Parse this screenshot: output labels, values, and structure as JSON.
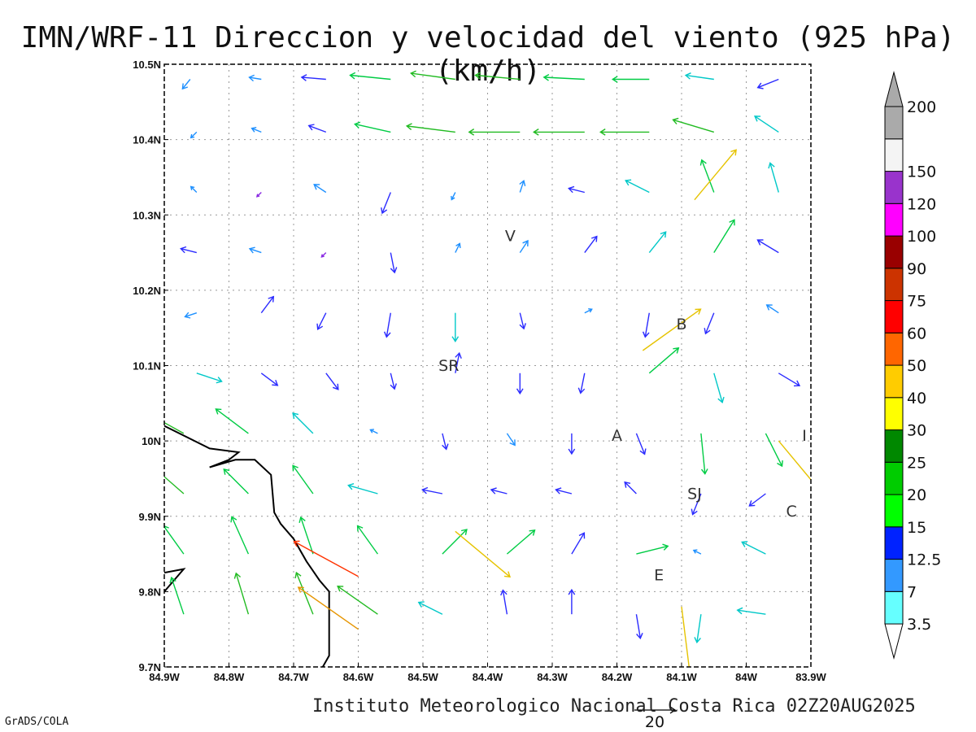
{
  "title": "IMN/WRF-11 Direccion y velocidad del viento (925 hPa)(km/h)",
  "credit": "Instituto Meteorologico Nacional Costa Rica 02Z20AUG2025",
  "software": "GrADS/COLA",
  "reference_vector": {
    "label": "20",
    "speed": 20
  },
  "map_extent": {
    "lon_min": -84.9,
    "lon_max": -83.9,
    "lat_min": 9.7,
    "lat_max": 10.5
  },
  "lon_ticks": [
    {
      "lon": -84.9,
      "label": "84.9W"
    },
    {
      "lon": -84.8,
      "label": "84.8W"
    },
    {
      "lon": -84.7,
      "label": "84.7W"
    },
    {
      "lon": -84.6,
      "label": "84.6W"
    },
    {
      "lon": -84.5,
      "label": "84.5W"
    },
    {
      "lon": -84.4,
      "label": "84.4W"
    },
    {
      "lon": -84.3,
      "label": "84.3W"
    },
    {
      "lon": -84.2,
      "label": "84.2W"
    },
    {
      "lon": -84.1,
      "label": "84.1W"
    },
    {
      "lon": -84.0,
      "label": "84W"
    },
    {
      "lon": -83.9,
      "label": "83.9W"
    }
  ],
  "lat_ticks": [
    {
      "lat": 9.7,
      "label": "9.7N"
    },
    {
      "lat": 9.8,
      "label": "9.8N"
    },
    {
      "lat": 9.9,
      "label": "9.9N"
    },
    {
      "lat": 10.0,
      "label": "10N"
    },
    {
      "lat": 10.1,
      "label": "10.1N"
    },
    {
      "lat": 10.2,
      "label": "10.2N"
    },
    {
      "lat": 10.3,
      "label": "10.3N"
    },
    {
      "lat": 10.4,
      "label": "10.4N"
    },
    {
      "lat": 10.5,
      "label": "10.5N"
    }
  ],
  "colorbar": {
    "bins": [
      {
        "label": "3.5",
        "color": "#66ffff"
      },
      {
        "label": "7",
        "color": "#3399ff"
      },
      {
        "label": "12.5",
        "color": "#0022ff"
      },
      {
        "label": "15",
        "color": "#00ff00"
      },
      {
        "label": "20",
        "color": "#00cc00"
      },
      {
        "label": "25",
        "color": "#008800"
      },
      {
        "label": "30",
        "color": "#ffff00"
      },
      {
        "label": "40",
        "color": "#ffcc00"
      },
      {
        "label": "50",
        "color": "#ff6600"
      },
      {
        "label": "60",
        "color": "#ff0000"
      },
      {
        "label": "75",
        "color": "#cc3300"
      },
      {
        "label": "90",
        "color": "#990000"
      },
      {
        "label": "100",
        "color": "#ff00ff"
      },
      {
        "label": "120",
        "color": "#9933cc"
      },
      {
        "label": "150",
        "color": "#f4f4f4"
      },
      {
        "label": "200",
        "color": "#aaaaaa"
      }
    ],
    "low_color": "#ffffff",
    "high_color": "#aaaaaa"
  },
  "speed_classes": [
    {
      "max": 3.5,
      "color": "#8a2be2"
    },
    {
      "max": 7,
      "color": "#1e90ff"
    },
    {
      "max": 12.5,
      "color": "#2b2bff"
    },
    {
      "max": 15,
      "color": "#00c8c8"
    },
    {
      "max": 20,
      "color": "#00cc44"
    },
    {
      "max": 25,
      "color": "#22bb22"
    },
    {
      "max": 30,
      "color": "#9acd32"
    },
    {
      "max": 40,
      "color": "#e6c300"
    },
    {
      "max": 50,
      "color": "#e69500"
    },
    {
      "max": 60,
      "color": "#ff3300"
    }
  ],
  "cities": [
    {
      "name": "V",
      "lon": -84.365,
      "lat": 10.265
    },
    {
      "name": "SR",
      "lon": -84.46,
      "lat": 10.093
    },
    {
      "name": "B",
      "lon": -84.1,
      "lat": 10.148
    },
    {
      "name": "A",
      "lon": -84.2,
      "lat": 10.0
    },
    {
      "name": "SJ",
      "lon": -84.08,
      "lat": 9.923
    },
    {
      "name": "C",
      "lon": -83.93,
      "lat": 9.9
    },
    {
      "name": "E",
      "lon": -84.135,
      "lat": 9.815
    },
    {
      "name": "I",
      "lon": -83.91,
      "lat": 10.0
    }
  ],
  "coastline": [
    [
      [
        -84.9,
        10.02
      ],
      [
        -84.83,
        9.99
      ],
      [
        -84.785,
        9.985
      ],
      [
        -84.8,
        9.975
      ],
      [
        -84.83,
        9.965
      ],
      [
        -84.79,
        9.975
      ],
      [
        -84.76,
        9.975
      ],
      [
        -84.735,
        9.955
      ],
      [
        -84.73,
        9.905
      ],
      [
        -84.72,
        9.89
      ],
      [
        -84.7,
        9.87
      ],
      [
        -84.68,
        9.84
      ],
      [
        -84.66,
        9.815
      ],
      [
        -84.645,
        9.8
      ],
      [
        -84.645,
        9.76
      ],
      [
        -84.645,
        9.715
      ],
      [
        -84.655,
        9.7
      ]
    ],
    [
      [
        -84.9,
        9.825
      ],
      [
        -84.87,
        9.83
      ],
      [
        -84.9,
        9.8
      ]
    ]
  ],
  "wind_field": [
    {
      "lat": 10.48,
      "lon": -84.86,
      "u": -4,
      "v": -5,
      "s": 6
    },
    {
      "lat": 10.48,
      "lon": -84.75,
      "u": -6,
      "v": 1,
      "s": 6
    },
    {
      "lat": 10.48,
      "lon": -84.65,
      "u": -12,
      "v": 1,
      "s": 12
    },
    {
      "lat": 10.48,
      "lon": -84.55,
      "u": -20,
      "v": 2,
      "s": 20
    },
    {
      "lat": 10.48,
      "lon": -84.45,
      "u": -22,
      "v": 3,
      "s": 22
    },
    {
      "lat": 10.48,
      "lon": -84.35,
      "u": -22,
      "v": 2,
      "s": 22
    },
    {
      "lat": 10.48,
      "lon": -84.25,
      "u": -20,
      "v": 1,
      "s": 20
    },
    {
      "lat": 10.48,
      "lon": -84.15,
      "u": -18,
      "v": 0,
      "s": 18
    },
    {
      "lat": 10.48,
      "lon": -84.05,
      "u": -14,
      "v": 2,
      "s": 14
    },
    {
      "lat": 10.48,
      "lon": -83.95,
      "u": -10,
      "v": -4,
      "s": 11
    },
    {
      "lat": 10.41,
      "lon": -84.85,
      "u": -3,
      "v": -3,
      "s": 4
    },
    {
      "lat": 10.41,
      "lon": -84.75,
      "u": -5,
      "v": 2,
      "s": 5
    },
    {
      "lat": 10.41,
      "lon": -84.65,
      "u": -8,
      "v": 3,
      "s": 9
    },
    {
      "lat": 10.41,
      "lon": -84.55,
      "u": -18,
      "v": 4,
      "s": 18
    },
    {
      "lat": 10.41,
      "lon": -84.45,
      "u": -24,
      "v": 3,
      "s": 24
    },
    {
      "lat": 10.41,
      "lon": -84.35,
      "u": -25,
      "v": 0,
      "s": 25
    },
    {
      "lat": 10.41,
      "lon": -84.25,
      "u": -25,
      "v": 0,
      "s": 25
    },
    {
      "lat": 10.41,
      "lon": -84.15,
      "u": -24,
      "v": 0,
      "s": 24
    },
    {
      "lat": 10.41,
      "lon": -84.05,
      "u": -20,
      "v": 6,
      "s": 21
    },
    {
      "lat": 10.41,
      "lon": -83.95,
      "u": -12,
      "v": 8,
      "s": 14
    },
    {
      "lat": 10.33,
      "lon": -84.85,
      "u": -3,
      "v": 3,
      "s": 4
    },
    {
      "lat": 10.33,
      "lon": -84.75,
      "u": -2,
      "v": -2,
      "s": 3
    },
    {
      "lat": 10.33,
      "lon": -84.65,
      "u": -6,
      "v": 4,
      "s": 7
    },
    {
      "lat": 10.33,
      "lon": -84.55,
      "u": -4,
      "v": -10,
      "s": 11
    },
    {
      "lat": 10.33,
      "lon": -84.45,
      "u": -2,
      "v": -4,
      "s": 4
    },
    {
      "lat": 10.33,
      "lon": -84.35,
      "u": 2,
      "v": 6,
      "s": 6
    },
    {
      "lat": 10.33,
      "lon": -84.25,
      "u": -8,
      "v": 2,
      "s": 8
    },
    {
      "lat": 10.33,
      "lon": -84.15,
      "u": -12,
      "v": 6,
      "s": 13
    },
    {
      "lat": 10.33,
      "lon": -84.05,
      "u": -6,
      "v": 16,
      "s": 17
    },
    {
      "lat": 10.33,
      "lon": -83.95,
      "u": -4,
      "v": 14,
      "s": 15
    },
    {
      "lat": 10.25,
      "lon": -84.85,
      "u": -8,
      "v": 2,
      "s": 8
    },
    {
      "lat": 10.25,
      "lon": -84.75,
      "u": -6,
      "v": 2,
      "s": 6
    },
    {
      "lat": 10.25,
      "lon": -84.65,
      "u": -2,
      "v": -2,
      "s": 3
    },
    {
      "lat": 10.25,
      "lon": -84.55,
      "u": 2,
      "v": -10,
      "s": 10
    },
    {
      "lat": 10.25,
      "lon": -84.45,
      "u": 2,
      "v": 4,
      "s": 5
    },
    {
      "lat": 10.25,
      "lon": -84.35,
      "u": 4,
      "v": 6,
      "s": 7
    },
    {
      "lat": 10.25,
      "lon": -84.25,
      "u": 6,
      "v": 8,
      "s": 10
    },
    {
      "lat": 10.25,
      "lon": -84.15,
      "u": 8,
      "v": 10,
      "s": 13
    },
    {
      "lat": 10.25,
      "lon": -84.05,
      "u": 10,
      "v": 16,
      "s": 19
    },
    {
      "lat": 10.25,
      "lon": -83.95,
      "u": -10,
      "v": 6,
      "s": 12
    },
    {
      "lat": 10.17,
      "lon": -84.85,
      "u": -6,
      "v": -2,
      "s": 6
    },
    {
      "lat": 10.17,
      "lon": -84.75,
      "u": 6,
      "v": 8,
      "s": 10
    },
    {
      "lat": 10.17,
      "lon": -84.65,
      "u": -4,
      "v": -8,
      "s": 9
    },
    {
      "lat": 10.17,
      "lon": -84.55,
      "u": -2,
      "v": -12,
      "s": 12
    },
    {
      "lat": 10.17,
      "lon": -84.45,
      "u": 0,
      "v": -14,
      "s": 14
    },
    {
      "lat": 10.17,
      "lon": -84.35,
      "u": 2,
      "v": -8,
      "s": 8
    },
    {
      "lat": 10.17,
      "lon": -84.25,
      "u": 4,
      "v": 2,
      "s": 4
    },
    {
      "lat": 10.17,
      "lon": -84.15,
      "u": -2,
      "v": -12,
      "s": 12
    },
    {
      "lat": 10.17,
      "lon": -84.05,
      "u": -4,
      "v": -10,
      "s": 11
    },
    {
      "lat": 10.17,
      "lon": -83.95,
      "u": -6,
      "v": 4,
      "s": 7
    },
    {
      "lat": 10.09,
      "lon": -84.85,
      "u": 12,
      "v": -4,
      "s": 13
    },
    {
      "lat": 10.09,
      "lon": -84.75,
      "u": 8,
      "v": -6,
      "s": 10
    },
    {
      "lat": 10.09,
      "lon": -84.65,
      "u": 6,
      "v": -8,
      "s": 10
    },
    {
      "lat": 10.09,
      "lon": -84.55,
      "u": 2,
      "v": -8,
      "s": 8
    },
    {
      "lat": 10.09,
      "lon": -84.45,
      "u": 2,
      "v": 10,
      "s": 10
    },
    {
      "lat": 10.09,
      "lon": -84.35,
      "u": 0,
      "v": -10,
      "s": 10
    },
    {
      "lat": 10.09,
      "lon": -84.25,
      "u": -2,
      "v": -10,
      "s": 10
    },
    {
      "lat": 10.09,
      "lon": -84.15,
      "u": 14,
      "v": 12,
      "s": 19
    },
    {
      "lat": 10.09,
      "lon": -84.05,
      "u": 4,
      "v": -14,
      "s": 15
    },
    {
      "lat": 10.09,
      "lon": -83.95,
      "u": 10,
      "v": -6,
      "s": 12
    },
    {
      "lat": 10.01,
      "lon": -84.87,
      "u": -18,
      "v": 10,
      "s": 21
    },
    {
      "lat": 10.01,
      "lon": -84.77,
      "u": -16,
      "v": 12,
      "s": 20
    },
    {
      "lat": 10.01,
      "lon": -84.67,
      "u": -10,
      "v": 10,
      "s": 14
    },
    {
      "lat": 10.01,
      "lon": -84.57,
      "u": -4,
      "v": 2,
      "s": 4
    },
    {
      "lat": 10.01,
      "lon": -84.47,
      "u": 2,
      "v": -8,
      "s": 8
    },
    {
      "lat": 10.01,
      "lon": -84.37,
      "u": 4,
      "v": -6,
      "s": 7
    },
    {
      "lat": 10.01,
      "lon": -84.27,
      "u": 0,
      "v": -10,
      "s": 10
    },
    {
      "lat": 10.01,
      "lon": -84.17,
      "u": 4,
      "v": -10,
      "s": 11
    },
    {
      "lat": 10.01,
      "lon": -84.07,
      "u": 2,
      "v": -20,
      "s": 20
    },
    {
      "lat": 10.01,
      "lon": -83.97,
      "u": 8,
      "v": -16,
      "s": 18
    },
    {
      "lat": 9.93,
      "lon": -84.87,
      "u": -16,
      "v": 14,
      "s": 21
    },
    {
      "lat": 9.93,
      "lon": -84.77,
      "u": -12,
      "v": 12,
      "s": 17
    },
    {
      "lat": 9.93,
      "lon": -84.67,
      "u": -10,
      "v": 14,
      "s": 17
    },
    {
      "lat": 9.93,
      "lon": -84.57,
      "u": -14,
      "v": 4,
      "s": 15
    },
    {
      "lat": 9.93,
      "lon": -84.47,
      "u": -10,
      "v": 2,
      "s": 10
    },
    {
      "lat": 9.93,
      "lon": -84.37,
      "u": -8,
      "v": 2,
      "s": 8
    },
    {
      "lat": 9.93,
      "lon": -84.27,
      "u": -8,
      "v": 2,
      "s": 8
    },
    {
      "lat": 9.93,
      "lon": -84.17,
      "u": -6,
      "v": 6,
      "s": 8
    },
    {
      "lat": 9.93,
      "lon": -84.07,
      "u": -4,
      "v": -10,
      "s": 11
    },
    {
      "lat": 9.93,
      "lon": -83.97,
      "u": -8,
      "v": -6,
      "s": 10
    },
    {
      "lat": 9.85,
      "lon": -84.87,
      "u": -10,
      "v": 14,
      "s": 17
    },
    {
      "lat": 9.85,
      "lon": -84.77,
      "u": -8,
      "v": 18,
      "s": 20
    },
    {
      "lat": 9.85,
      "lon": -84.67,
      "u": -6,
      "v": 18,
      "s": 19
    },
    {
      "lat": 9.85,
      "lon": -84.57,
      "u": -10,
      "v": 14,
      "s": 17
    },
    {
      "lat": 9.85,
      "lon": -84.47,
      "u": 12,
      "v": 12,
      "s": 17
    },
    {
      "lat": 9.85,
      "lon": -84.37,
      "u": 14,
      "v": 12,
      "s": 18
    },
    {
      "lat": 9.85,
      "lon": -84.27,
      "u": 6,
      "v": 10,
      "s": 12
    },
    {
      "lat": 9.85,
      "lon": -84.17,
      "u": 16,
      "v": 4,
      "s": 16
    },
    {
      "lat": 9.85,
      "lon": -84.07,
      "u": -4,
      "v": 2,
      "s": 4
    },
    {
      "lat": 9.85,
      "lon": -83.97,
      "u": -12,
      "v": 6,
      "s": 13
    },
    {
      "lat": 9.77,
      "lon": -84.87,
      "u": -6,
      "v": 18,
      "s": 19
    },
    {
      "lat": 9.77,
      "lon": -84.77,
      "u": -6,
      "v": 20,
      "s": 21
    },
    {
      "lat": 9.77,
      "lon": -84.67,
      "u": -8,
      "v": 20,
      "s": 22
    },
    {
      "lat": 9.77,
      "lon": -84.57,
      "u": -20,
      "v": 14,
      "s": 24
    },
    {
      "lat": 9.77,
      "lon": -84.47,
      "u": -12,
      "v": 6,
      "s": 13
    },
    {
      "lat": 9.77,
      "lon": -84.37,
      "u": -2,
      "v": 12,
      "s": 12
    },
    {
      "lat": 9.77,
      "lon": -84.27,
      "u": 0,
      "v": 12,
      "s": 12
    },
    {
      "lat": 9.77,
      "lon": -84.17,
      "u": 2,
      "v": -12,
      "s": 12
    },
    {
      "lat": 9.77,
      "lon": -84.07,
      "u": -2,
      "v": -14,
      "s": 14
    },
    {
      "lat": 9.77,
      "lon": -83.97,
      "u": -14,
      "v": 2,
      "s": 14
    },
    {
      "lat": 9.82,
      "lon": -84.6,
      "u": -22,
      "v": 12,
      "s": 52
    },
    {
      "lat": 9.75,
      "lon": -84.6,
      "u": -20,
      "v": 14,
      "s": 45
    },
    {
      "lat": 9.88,
      "lon": -84.45,
      "u": 12,
      "v": -10,
      "s": 35
    },
    {
      "lat": 10.32,
      "lon": -84.08,
      "u": 10,
      "v": 12,
      "s": 32
    },
    {
      "lat": 10.12,
      "lon": -84.16,
      "u": 14,
      "v": 10,
      "s": 35
    },
    {
      "lat": 10.0,
      "lon": -83.95,
      "u": 10,
      "v": -12,
      "s": 33
    },
    {
      "lat": 9.78,
      "lon": -84.1,
      "u": 2,
      "v": -16,
      "s": 33
    }
  ]
}
